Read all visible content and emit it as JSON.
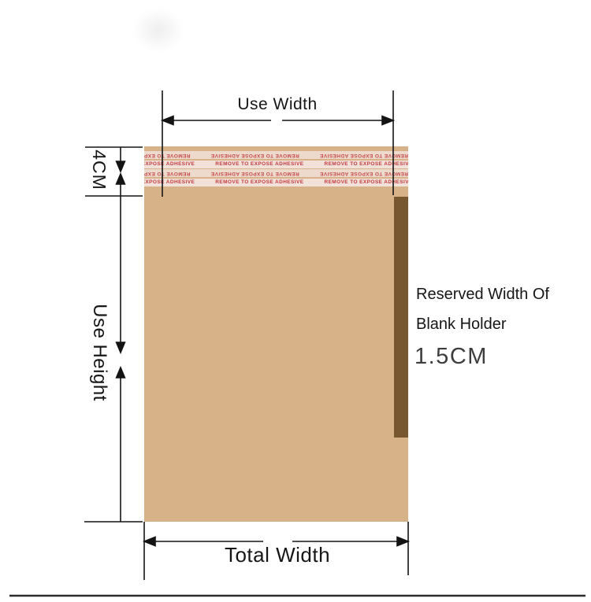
{
  "diagram": {
    "title_context": "envelope dimension diagram",
    "labels": {
      "use_width": "Use Width",
      "use_height": "Use Height",
      "seal_height": "4CM",
      "total_width": "Total Width"
    },
    "reserved": {
      "line1": "Reserved Width Of",
      "line2": "Blank Holder",
      "value": "1.5CM"
    }
  },
  "envelope": {
    "adhesive": {
      "text": "REMOVE TO EXPOSE ADHESIVE",
      "repeats": 6,
      "rows": [
        {
          "flipped": true,
          "offset": -10
        },
        {
          "flipped": false,
          "offset": -48
        },
        {
          "flipped": true,
          "offset": -10
        },
        {
          "flipped": false,
          "offset": -48
        }
      ]
    }
  },
  "colors": {
    "envelope_body": "#d7b289",
    "adhesive_band": "#f2e1d9",
    "adhesive_text": "#c23a42",
    "holder_strip": "#77572f",
    "dimension_line": "#141414",
    "separator_line": "#2c2c2c"
  }
}
